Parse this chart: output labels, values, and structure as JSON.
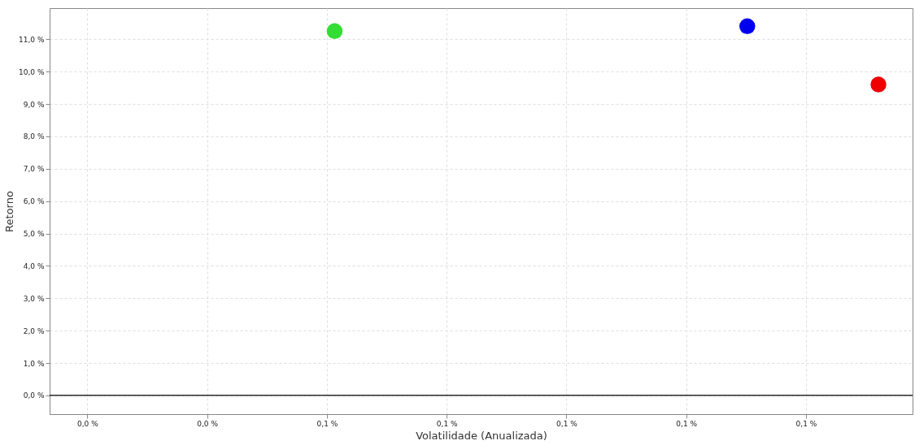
{
  "chart_data": {
    "type": "scatter",
    "xlabel": "Volatilidade (Anualizada)",
    "ylabel": "Retorno",
    "x": [
      0.0613,
      0.1302,
      0.1521
    ],
    "values": [
      11.25,
      11.4,
      9.6
    ],
    "colors": [
      "#33dd33",
      "#0000ee",
      "#ee0000"
    ],
    "marker": "circle",
    "xlim": [
      0.0137,
      0.1578
    ],
    "ylim": [
      -0.58,
      11.96
    ],
    "xticks": [
      {
        "value": 0.02,
        "label": "0,0 %"
      },
      {
        "value": 0.04,
        "label": "0,0 %"
      },
      {
        "value": 0.06,
        "label": "0,1 %"
      },
      {
        "value": 0.08,
        "label": "0,1 %"
      },
      {
        "value": 0.1,
        "label": "0,1 %"
      },
      {
        "value": 0.12,
        "label": "0,1 %"
      },
      {
        "value": 0.14,
        "label": "0,1 %"
      }
    ],
    "yticks": [
      {
        "value": 0,
        "label": "0,0 %"
      },
      {
        "value": 1,
        "label": "1,0 %"
      },
      {
        "value": 2,
        "label": "2,0 %"
      },
      {
        "value": 3,
        "label": "3,0 %"
      },
      {
        "value": 4,
        "label": "4,0 %"
      },
      {
        "value": 5,
        "label": "5,0 %"
      },
      {
        "value": 6,
        "label": "6,0 %"
      },
      {
        "value": 7,
        "label": "7,0 %"
      },
      {
        "value": 8,
        "label": "8,0 %"
      },
      {
        "value": 9,
        "label": "9,0 %"
      },
      {
        "value": 10,
        "label": "10,0 %"
      },
      {
        "value": 11,
        "label": "11,0 %"
      }
    ],
    "ref_lines": [
      {
        "axis": "y",
        "value": 0,
        "color": "#000000"
      }
    ],
    "grid": true
  }
}
